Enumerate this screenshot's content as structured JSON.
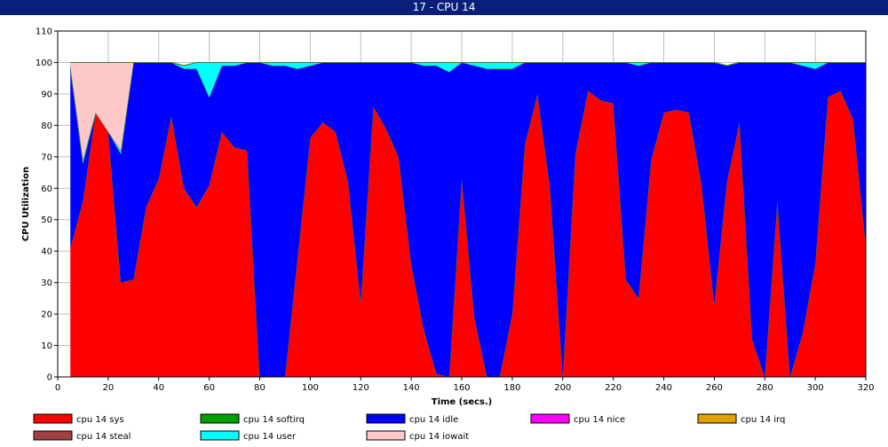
{
  "window": {
    "title": "17 - CPU 14"
  },
  "chart_data": {
    "type": "area",
    "stacked": true,
    "xlabel": "Time (secs.)",
    "ylabel": "CPU Utilization",
    "xlim": [
      0,
      320
    ],
    "ylim": [
      0,
      110
    ],
    "x_ticks": [
      0,
      20,
      40,
      60,
      80,
      100,
      120,
      140,
      160,
      180,
      200,
      220,
      240,
      260,
      280,
      300,
      320
    ],
    "y_ticks": [
      0,
      10,
      20,
      30,
      40,
      50,
      60,
      70,
      80,
      90,
      100,
      110
    ],
    "grid": true,
    "legend_position": "bottom",
    "x": [
      5,
      10,
      15,
      20,
      25,
      30,
      35,
      40,
      45,
      50,
      55,
      60,
      65,
      70,
      75,
      80,
      85,
      90,
      95,
      100,
      105,
      110,
      115,
      120,
      125,
      130,
      135,
      140,
      145,
      150,
      155,
      160,
      165,
      170,
      175,
      180,
      185,
      190,
      195,
      200,
      205,
      210,
      215,
      220,
      225,
      230,
      235,
      240,
      245,
      250,
      255,
      260,
      265,
      270,
      275,
      280,
      285,
      290,
      295,
      300,
      305,
      310,
      315,
      320
    ],
    "series": [
      {
        "name": "cpu 14 sys",
        "color": "#ff0000",
        "values": [
          41,
          56,
          84,
          78,
          30,
          31,
          54,
          63,
          83,
          60,
          54,
          61,
          78,
          73,
          72,
          0,
          0,
          0,
          38,
          76,
          81,
          78,
          62,
          24,
          86,
          79,
          70,
          36,
          15,
          1,
          0,
          63,
          19,
          0,
          0,
          20,
          74,
          90,
          60,
          0,
          71,
          91,
          88,
          87,
          31,
          25,
          69,
          84,
          85,
          84,
          61,
          23,
          62,
          81,
          12,
          0,
          56,
          0,
          14,
          36,
          89,
          91,
          82,
          42
        ]
      },
      {
        "name": "cpu 14 softirq",
        "color": "#00a000",
        "values": [
          0,
          0,
          0,
          0,
          0,
          0,
          0,
          0,
          0,
          0,
          0,
          0,
          0,
          0,
          0,
          0,
          0,
          0,
          0,
          0,
          0,
          0,
          0,
          0,
          0,
          0,
          0,
          0,
          0,
          0,
          0,
          0,
          0,
          0,
          0,
          0,
          0,
          0,
          0,
          0,
          0,
          0,
          0,
          0,
          0,
          0,
          0,
          0,
          0,
          0,
          0,
          0,
          0,
          0,
          0,
          0,
          0,
          0,
          0,
          0,
          0,
          0,
          0,
          0
        ]
      },
      {
        "name": "cpu 14 idle",
        "color": "#0000ff",
        "values": [
          57,
          12,
          0,
          0,
          41,
          69,
          46,
          37,
          17,
          38,
          44,
          28,
          21,
          26,
          28,
          100,
          99,
          99,
          60,
          23,
          19,
          22,
          38,
          76,
          14,
          21,
          30,
          64,
          84,
          98,
          97,
          37,
          80,
          98,
          98,
          78,
          26,
          10,
          40,
          100,
          29,
          9,
          12,
          13,
          69,
          74,
          31,
          16,
          15,
          16,
          39,
          77,
          37,
          19,
          88,
          100,
          44,
          100,
          85,
          62,
          11,
          9,
          18,
          58
        ]
      },
      {
        "name": "cpu 14 nice",
        "color": "#ff00ff",
        "values": [
          0,
          0,
          0,
          0,
          0,
          0,
          0,
          0,
          0,
          0,
          0,
          0,
          0,
          0,
          0,
          0,
          0,
          0,
          0,
          0,
          0,
          0,
          0,
          0,
          0,
          0,
          0,
          0,
          0,
          0,
          0,
          0,
          0,
          0,
          0,
          0,
          0,
          0,
          0,
          0,
          0,
          0,
          0,
          0,
          0,
          0,
          0,
          0,
          0,
          0,
          0,
          0,
          0,
          0,
          0,
          0,
          0,
          0,
          0,
          0,
          0,
          0,
          0,
          0
        ]
      },
      {
        "name": "cpu 14 irq",
        "color": "#e0a000",
        "values": [
          0,
          0,
          0,
          0,
          0,
          0,
          0,
          0,
          0,
          0,
          0,
          0,
          0,
          0,
          0,
          0,
          0,
          0,
          0,
          0,
          0,
          0,
          0,
          0,
          0,
          0,
          0,
          0,
          0,
          0,
          0,
          0,
          0,
          0,
          0,
          0,
          0,
          0,
          0,
          0,
          0,
          0,
          0,
          0,
          0,
          0,
          0,
          0,
          0,
          0,
          0,
          0,
          0,
          0,
          0,
          0,
          0,
          0,
          0,
          0,
          0,
          0,
          0,
          0
        ]
      },
      {
        "name": "cpu 14 steal",
        "color": "#a04040",
        "values": [
          0,
          0,
          0,
          0,
          0,
          0,
          0,
          0,
          0,
          0,
          0,
          0,
          0,
          0,
          0,
          0,
          0,
          0,
          0,
          0,
          0,
          0,
          0,
          0,
          0,
          0,
          0,
          0,
          0,
          0,
          0,
          0,
          0,
          0,
          0,
          0,
          0,
          0,
          0,
          0,
          0,
          0,
          0,
          0,
          0,
          0,
          0,
          0,
          0,
          0,
          0,
          0,
          0,
          0,
          0,
          0,
          0,
          0,
          0,
          0,
          0,
          0,
          0,
          0
        ]
      },
      {
        "name": "cpu 14 user",
        "color": "#00ffff",
        "values": [
          1,
          1,
          0,
          0,
          1,
          0,
          0,
          0,
          0,
          1,
          2,
          11,
          1,
          1,
          0,
          0,
          1,
          1,
          2,
          1,
          0,
          0,
          0,
          0,
          0,
          0,
          0,
          0,
          1,
          1,
          3,
          0,
          1,
          2,
          2,
          2,
          0,
          0,
          0,
          0,
          0,
          0,
          0,
          0,
          0,
          1,
          0,
          0,
          0,
          0,
          0,
          0,
          0,
          0,
          0,
          0,
          0,
          0,
          1,
          2,
          0,
          0,
          0,
          0
        ]
      },
      {
        "name": "cpu 14 iowait",
        "color": "#ffc8c8",
        "values": [
          1,
          31,
          16,
          22,
          28,
          0,
          0,
          0,
          0,
          0,
          0,
          0,
          0,
          0,
          0,
          0,
          0,
          0,
          0,
          0,
          0,
          0,
          0,
          0,
          0,
          0,
          0,
          0,
          0,
          0,
          0,
          0,
          0,
          0,
          0,
          0,
          0,
          0,
          0,
          0,
          0,
          0,
          0,
          0,
          0,
          0,
          0,
          0,
          0,
          0,
          0,
          0,
          0,
          0,
          0,
          0,
          0,
          0,
          0,
          0,
          0,
          0,
          0,
          0
        ]
      }
    ]
  }
}
